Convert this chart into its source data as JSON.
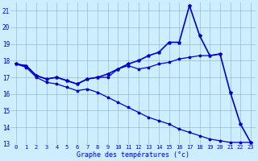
{
  "xlabel": "Graphe des températures (°c)",
  "bg_color": "#cceeff",
  "line_color": "#0000cc",
  "grid_color": "#99bbcc",
  "xlim": [
    -0.5,
    23.5
  ],
  "ylim": [
    13,
    21.5
  ],
  "yticks": [
    13,
    14,
    15,
    16,
    17,
    18,
    19,
    20,
    21
  ],
  "xticks": [
    0,
    1,
    2,
    3,
    4,
    5,
    6,
    7,
    8,
    9,
    10,
    11,
    12,
    13,
    14,
    15,
    16,
    17,
    18,
    19,
    20,
    21,
    22,
    23
  ],
  "line_main_x": [
    0,
    1,
    2,
    3,
    4,
    5,
    6,
    7,
    8,
    9,
    10,
    11,
    12,
    13,
    14,
    15,
    16,
    17,
    18,
    19,
    20,
    21,
    22,
    23
  ],
  "line_main_y": [
    17.8,
    17.7,
    17.1,
    16.9,
    17.0,
    16.8,
    16.6,
    16.9,
    17.0,
    17.2,
    17.5,
    17.8,
    18.0,
    18.3,
    18.5,
    19.1,
    19.1,
    21.3,
    19.5,
    18.3,
    18.4,
    16.1,
    14.2,
    13.1
  ],
  "line_flat_x": [
    0,
    1,
    2,
    3,
    4,
    5,
    6,
    7,
    8,
    9,
    10,
    11,
    12,
    13,
    14,
    15,
    16,
    17,
    18,
    19,
    20
  ],
  "line_flat_y": [
    17.8,
    17.7,
    17.1,
    16.9,
    17.0,
    16.8,
    16.6,
    16.9,
    17.0,
    17.0,
    17.5,
    17.7,
    17.5,
    17.6,
    17.8,
    17.9,
    18.1,
    18.2,
    18.3,
    18.3,
    18.4
  ],
  "line_dew_x": [
    0,
    1,
    2,
    3,
    4,
    5,
    6,
    7,
    8,
    9,
    10,
    11,
    12,
    13,
    14,
    15,
    16,
    17,
    18,
    19,
    20,
    21,
    22,
    23
  ],
  "line_dew_y": [
    17.8,
    17.6,
    17.0,
    16.7,
    16.6,
    16.4,
    16.2,
    16.3,
    16.1,
    15.8,
    15.5,
    15.2,
    14.9,
    14.6,
    14.4,
    14.2,
    13.9,
    13.7,
    13.5,
    13.3,
    13.2,
    13.1,
    13.1,
    13.1
  ]
}
